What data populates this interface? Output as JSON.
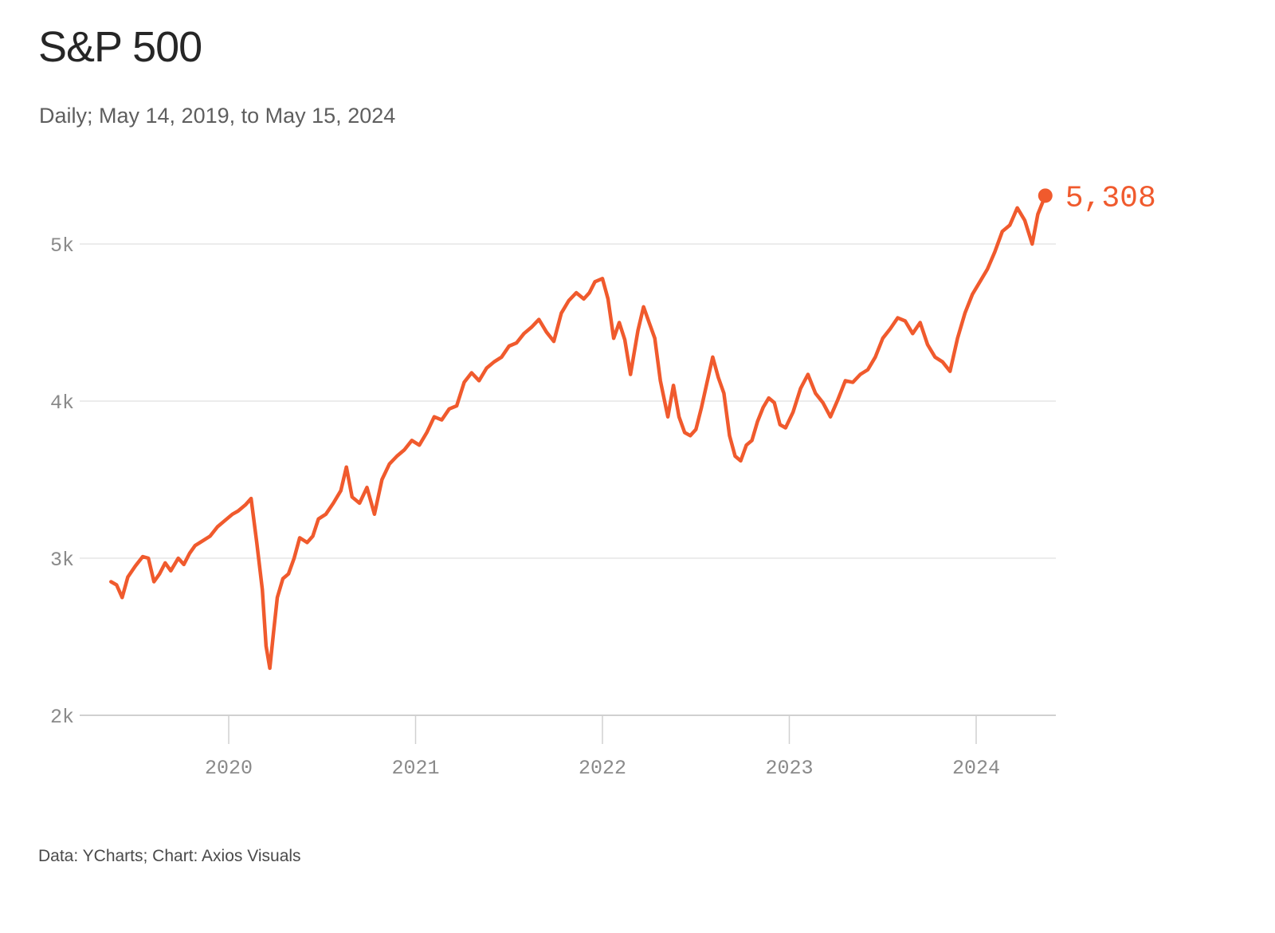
{
  "chart_data": {
    "type": "line",
    "title": "S&P 500",
    "subtitle": "Daily; May 14, 2019, to May 15, 2024",
    "source": "Data: YCharts; Chart: Axios Visuals",
    "ylim": [
      2000,
      5400
    ],
    "y_ticks": [
      2000,
      3000,
      4000,
      5000
    ],
    "y_tick_labels": [
      "2k",
      "3k",
      "4k",
      "5k"
    ],
    "x_ticks": [
      2020,
      2021,
      2022,
      2023,
      2024
    ],
    "x_tick_labels": [
      "2020",
      "2021",
      "2022",
      "2023",
      "2024"
    ],
    "grid": true,
    "line_color": "#f05a2d",
    "end_label": "5,308",
    "series": [
      {
        "x": [
          2019.37,
          2019.4,
          2019.43,
          2019.46,
          2019.5,
          2019.54,
          2019.57,
          2019.6,
          2019.63,
          2019.66,
          2019.69,
          2019.73,
          2019.76,
          2019.79,
          2019.82,
          2019.86,
          2019.9,
          2019.94,
          2019.98,
          2020.02,
          2020.05,
          2020.09,
          2020.12,
          2020.15,
          2020.18,
          2020.2,
          2020.22,
          2020.24,
          2020.26,
          2020.29,
          2020.32,
          2020.35,
          2020.38,
          2020.42,
          2020.45,
          2020.48,
          2020.52,
          2020.56,
          2020.6,
          2020.63,
          2020.66,
          2020.7,
          2020.74,
          2020.78,
          2020.82,
          2020.86,
          2020.9,
          2020.94,
          2020.98,
          2021.02,
          2021.06,
          2021.1,
          2021.14,
          2021.18,
          2021.22,
          2021.26,
          2021.3,
          2021.34,
          2021.38,
          2021.42,
          2021.46,
          2021.5,
          2021.54,
          2021.58,
          2021.62,
          2021.66,
          2021.7,
          2021.74,
          2021.78,
          2021.82,
          2021.86,
          2021.9,
          2021.93,
          2021.96,
          2022.0,
          2022.03,
          2022.06,
          2022.09,
          2022.12,
          2022.15,
          2022.19,
          2022.22,
          2022.25,
          2022.28,
          2022.31,
          2022.35,
          2022.38,
          2022.41,
          2022.44,
          2022.47,
          2022.5,
          2022.53,
          2022.56,
          2022.59,
          2022.62,
          2022.65,
          2022.68,
          2022.71,
          2022.74,
          2022.77,
          2022.8,
          2022.83,
          2022.86,
          2022.89,
          2022.92,
          2022.95,
          2022.98,
          2023.02,
          2023.06,
          2023.1,
          2023.14,
          2023.18,
          2023.22,
          2023.26,
          2023.3,
          2023.34,
          2023.38,
          2023.42,
          2023.46,
          2023.5,
          2023.54,
          2023.58,
          2023.62,
          2023.66,
          2023.7,
          2023.74,
          2023.78,
          2023.82,
          2023.86,
          2023.9,
          2023.94,
          2023.98,
          2024.02,
          2024.06,
          2024.1,
          2024.14,
          2024.18,
          2024.22,
          2024.26,
          2024.3,
          2024.33,
          2024.37
        ],
        "y": [
          2850,
          2830,
          2750,
          2880,
          2950,
          3010,
          3000,
          2850,
          2900,
          2970,
          2920,
          3000,
          2960,
          3030,
          3080,
          3110,
          3140,
          3200,
          3240,
          3280,
          3300,
          3340,
          3380,
          3100,
          2800,
          2440,
          2300,
          2530,
          2750,
          2870,
          2900,
          3000,
          3130,
          3100,
          3140,
          3250,
          3280,
          3350,
          3430,
          3580,
          3390,
          3350,
          3450,
          3280,
          3500,
          3600,
          3650,
          3690,
          3750,
          3720,
          3800,
          3900,
          3880,
          3950,
          3970,
          4120,
          4180,
          4130,
          4210,
          4250,
          4280,
          4350,
          4370,
          4430,
          4470,
          4520,
          4440,
          4380,
          4560,
          4640,
          4690,
          4650,
          4690,
          4760,
          4780,
          4650,
          4400,
          4500,
          4390,
          4170,
          4450,
          4600,
          4500,
          4400,
          4130,
          3900,
          4100,
          3900,
          3800,
          3780,
          3820,
          3960,
          4120,
          4280,
          4150,
          4050,
          3780,
          3650,
          3620,
          3720,
          3750,
          3870,
          3960,
          4020,
          3990,
          3850,
          3830,
          3930,
          4080,
          4170,
          4050,
          3990,
          3900,
          4010,
          4130,
          4120,
          4170,
          4200,
          4280,
          4400,
          4460,
          4530,
          4510,
          4430,
          4500,
          4360,
          4280,
          4250,
          4190,
          4400,
          4560,
          4680,
          4760,
          4840,
          4950,
          5080,
          5120,
          5230,
          5150,
          5000,
          5190,
          5308
        ]
      }
    ]
  }
}
